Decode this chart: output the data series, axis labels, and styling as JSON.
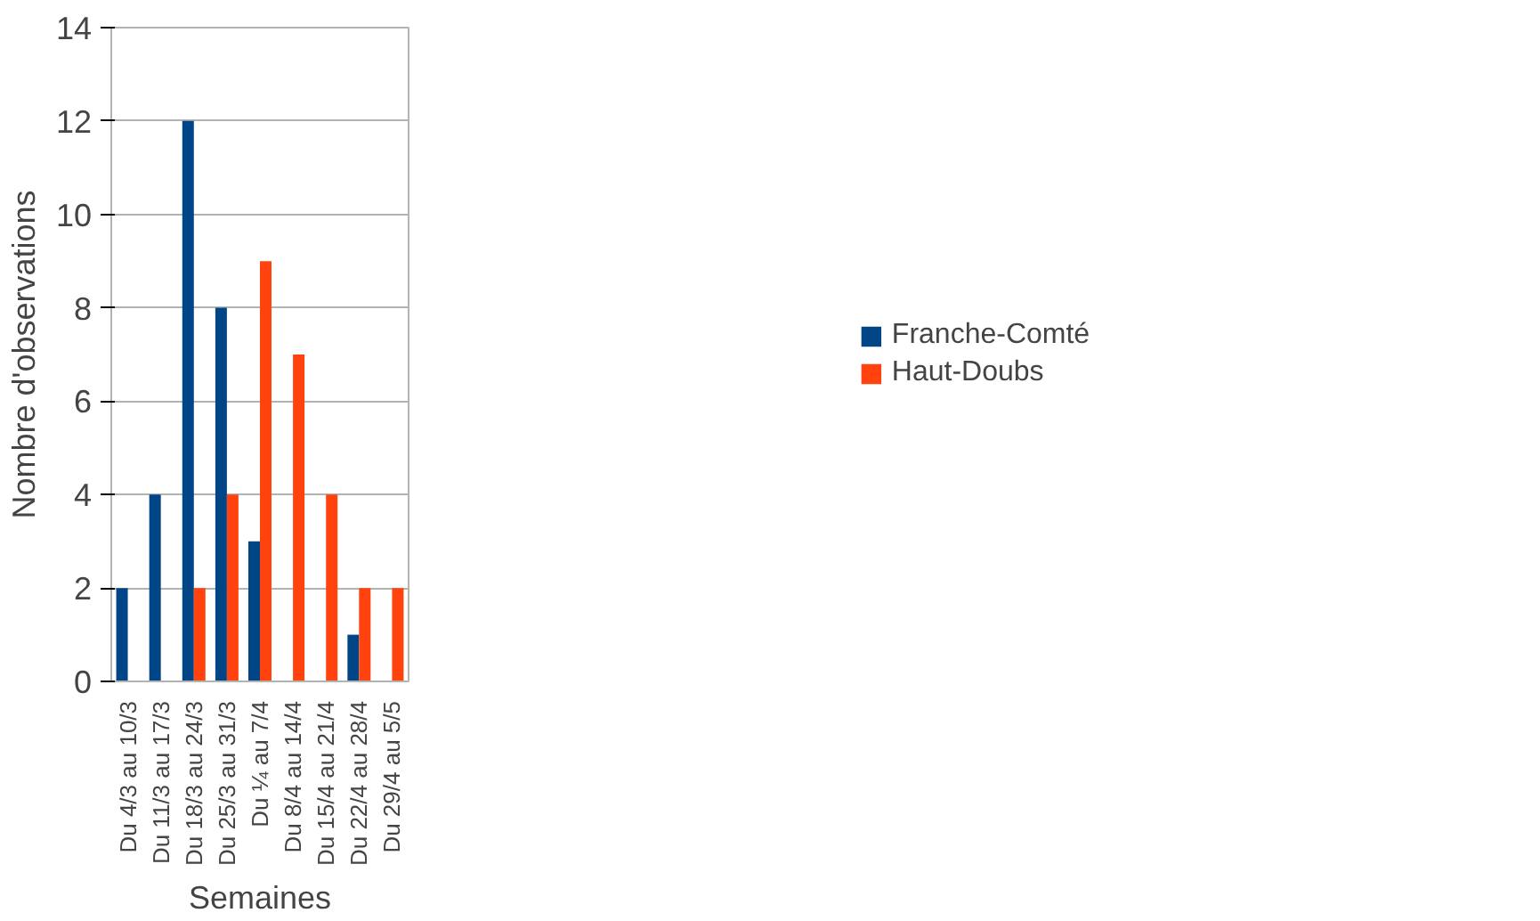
{
  "chart_data": {
    "type": "bar",
    "xlabel": "Semaines",
    "ylabel": "Nombre d'observations",
    "categories": [
      "Du 4/3 au 10/3",
      "Du 11/3 au 17/3",
      "Du 18/3 au 24/3",
      "Du 25/3 au 31/3",
      "Du ¼ au 7/4",
      "Du 8/4 au 14/4",
      "Du 15/4 au 21/4",
      "Du 22/4 au 28/4",
      "Du 29/4 au 5/5"
    ],
    "series": [
      {
        "name": "Franche-Comté",
        "color": "#004586",
        "values": [
          2,
          4,
          12,
          8,
          3,
          0,
          0,
          1,
          0
        ]
      },
      {
        "name": "Haut-Doubs",
        "color": "#ff420e",
        "values": [
          0,
          0,
          2,
          4,
          9,
          7,
          4,
          2,
          2
        ]
      }
    ],
    "ylim": [
      0,
      14
    ],
    "yticks": [
      0,
      2,
      4,
      6,
      8,
      10,
      12,
      14
    ],
    "grid": "y",
    "legend": "right"
  }
}
